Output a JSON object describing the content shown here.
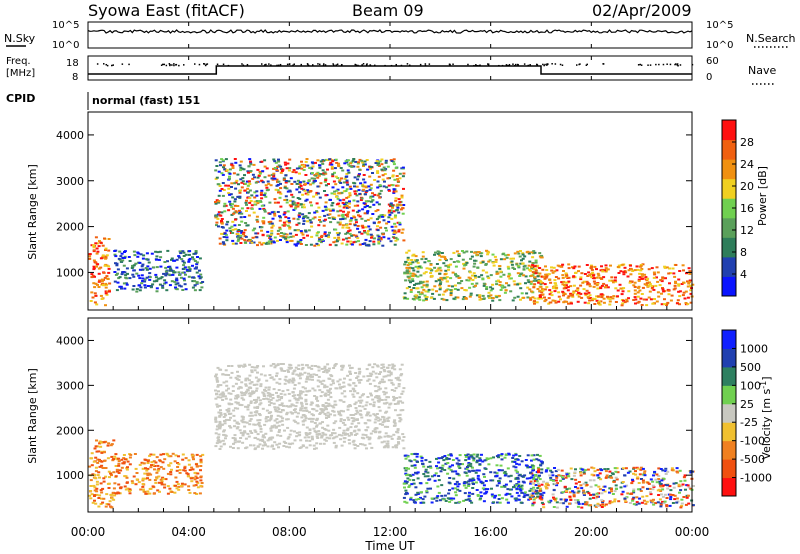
{
  "header": {
    "title": "Syowa East (fitACF)",
    "beam": "Beam 09",
    "date": "02/Apr/2009"
  },
  "aux_panels": {
    "nsky_label": "N.Sky",
    "nsearch_label": "N.Search",
    "nsky_ticks": [
      "10^5",
      "10^0"
    ],
    "nsearch_ticks": [
      "10^5",
      "10^0"
    ],
    "freq_label_1": "Freq.",
    "freq_label_2": "[MHz]",
    "freq_ticks": [
      "18",
      "8"
    ],
    "nave_label": "Nave",
    "nave_ticks": [
      "60",
      "0"
    ],
    "cpid_label": "CPID",
    "cpid_value": "normal (fast) 151"
  },
  "colors": {
    "power": [
      "#0a14ff",
      "#2040b0",
      "#2e7d5a",
      "#5aa05a",
      "#70d050",
      "#f0d020",
      "#f09010",
      "#f06010",
      "#ff1010"
    ],
    "velocity": [
      "#ff1010",
      "#f05010",
      "#f08020",
      "#f0c030",
      "#c8c8c0",
      "#70d050",
      "#2e8060",
      "#2040b0",
      "#1020ff"
    ]
  },
  "chart_data": [
    {
      "type": "heatmap",
      "panel": "power",
      "xlabel": "",
      "ylabel": "Slant Range [km]",
      "ylim": [
        180,
        4500
      ],
      "yticks": [
        "1000",
        "2000",
        "3000",
        "4000"
      ],
      "xlim": [
        0,
        24
      ],
      "colorbar_label": "Power [dB]",
      "colorbar_ticks": [
        "4",
        "8",
        "12",
        "16",
        "20",
        "24",
        "28"
      ],
      "echo_regions": [
        {
          "x": [
            0.0,
            0.8
          ],
          "y": [
            300,
            1800
          ],
          "level": "high"
        },
        {
          "x": [
            1.0,
            4.5
          ],
          "y": [
            600,
            1500
          ],
          "level": "low"
        },
        {
          "x": [
            5.0,
            12.5
          ],
          "y": [
            1600,
            3500
          ],
          "level": "mixed"
        },
        {
          "x": [
            12.5,
            18.0
          ],
          "y": [
            400,
            1500
          ],
          "level": "medium"
        },
        {
          "x": [
            17.5,
            24.0
          ],
          "y": [
            300,
            1200
          ],
          "level": "high"
        }
      ]
    },
    {
      "type": "heatmap",
      "panel": "velocity",
      "xlabel": "Time UT",
      "ylabel": "Slant Range [km]",
      "ylim": [
        180,
        4500
      ],
      "yticks": [
        "1000",
        "2000",
        "3000",
        "4000"
      ],
      "xlim": [
        0,
        24
      ],
      "xticks": [
        "00:00",
        "04:00",
        "08:00",
        "12:00",
        "16:00",
        "20:00",
        "00:00"
      ],
      "colorbar_label": "Velocity [m s",
      "colorbar_label_sup": "-1",
      "colorbar_ticks": [
        "1000",
        "500",
        "100",
        "25",
        "-25",
        "-100",
        "-500",
        "-1000"
      ],
      "echo_regions": [
        {
          "x": [
            0.0,
            1.0
          ],
          "y": [
            300,
            1800
          ],
          "velocity": "negative"
        },
        {
          "x": [
            1.0,
            4.5
          ],
          "y": [
            600,
            1500
          ],
          "velocity": "negative"
        },
        {
          "x": [
            5.0,
            12.5
          ],
          "y": [
            1600,
            3500
          ],
          "velocity": "ground-scatter"
        },
        {
          "x": [
            12.5,
            18.0
          ],
          "y": [
            400,
            1500
          ],
          "velocity": "positive"
        },
        {
          "x": [
            17.5,
            24.0
          ],
          "y": [
            300,
            1200
          ],
          "velocity": "mixed"
        }
      ]
    }
  ]
}
